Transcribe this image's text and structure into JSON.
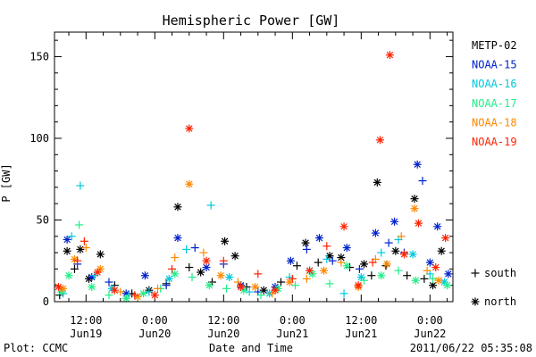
{
  "chart_data": {
    "type": "scatter",
    "title": "Hemispheric Power [GW]",
    "xlabel": "Date and Time",
    "ylabel": "P [GW]",
    "xlim_hours": [
      -17.5,
      52.0
    ],
    "ylim": [
      0,
      165
    ],
    "y_ticks": [
      0,
      50,
      100,
      150
    ],
    "x_ticks": [
      {
        "h": -12,
        "time": "12:00",
        "date": "Jun19"
      },
      {
        "h": 0,
        "time": "0:00",
        "date": "Jun20"
      },
      {
        "h": 12,
        "time": "12:00",
        "date": "Jun20"
      },
      {
        "h": 24,
        "time": "0:00",
        "date": "Jun21"
      },
      {
        "h": 36,
        "time": "12:00",
        "date": "Jun21"
      },
      {
        "h": 48,
        "time": "0:00",
        "date": "Jun22"
      }
    ],
    "marker_legend": [
      {
        "symbol": "+",
        "label": "south"
      },
      {
        "symbol": "*",
        "label": "north"
      }
    ],
    "series": [
      {
        "name": "METP-02",
        "color": "#000000",
        "points": [
          {
            "h": -16.6,
            "v": 4,
            "m": "+"
          },
          {
            "h": -15.3,
            "v": 31,
            "m": "*"
          },
          {
            "h": -14.0,
            "v": 20,
            "m": "+"
          },
          {
            "h": -13.0,
            "v": 32,
            "m": "*"
          },
          {
            "h": -11.5,
            "v": 14,
            "m": "*"
          },
          {
            "h": -9.5,
            "v": 29,
            "m": "*"
          },
          {
            "h": -7.0,
            "v": 10,
            "m": "+"
          },
          {
            "h": -4.0,
            "v": 5,
            "m": "+"
          },
          {
            "h": -1.0,
            "v": 7,
            "m": "*"
          },
          {
            "h": 2.0,
            "v": 11,
            "m": "+"
          },
          {
            "h": 4.0,
            "v": 58,
            "m": "*"
          },
          {
            "h": 6.0,
            "v": 21,
            "m": "+"
          },
          {
            "h": 8.0,
            "v": 18,
            "m": "*"
          },
          {
            "h": 10.0,
            "v": 12,
            "m": "+"
          },
          {
            "h": 12.2,
            "v": 37,
            "m": "*"
          },
          {
            "h": 14.0,
            "v": 28,
            "m": "*"
          },
          {
            "h": 16.0,
            "v": 9,
            "m": "+"
          },
          {
            "h": 19.0,
            "v": 7,
            "m": "*"
          },
          {
            "h": 22.0,
            "v": 12,
            "m": "+"
          },
          {
            "h": 24.8,
            "v": 22,
            "m": "+"
          },
          {
            "h": 26.3,
            "v": 36,
            "m": "*"
          },
          {
            "h": 28.5,
            "v": 24,
            "m": "+"
          },
          {
            "h": 30.5,
            "v": 28,
            "m": "*"
          },
          {
            "h": 32.5,
            "v": 27,
            "m": "*"
          },
          {
            "h": 34.0,
            "v": 21,
            "m": "+"
          },
          {
            "h": 36.5,
            "v": 23,
            "m": "*"
          },
          {
            "h": 37.8,
            "v": 16,
            "m": "+"
          },
          {
            "h": 38.8,
            "v": 73,
            "m": "*"
          },
          {
            "h": 40.3,
            "v": 22,
            "m": "+"
          },
          {
            "h": 42.0,
            "v": 31,
            "m": "*"
          },
          {
            "h": 44.0,
            "v": 16,
            "m": "+"
          },
          {
            "h": 45.3,
            "v": 63,
            "m": "*"
          },
          {
            "h": 47.0,
            "v": 14,
            "m": "+"
          },
          {
            "h": 48.5,
            "v": 10,
            "m": "*"
          },
          {
            "h": 50.0,
            "v": 31,
            "m": "*"
          }
        ]
      },
      {
        "name": "NOAA-15",
        "color": "#0022cc",
        "points": [
          {
            "h": -15.3,
            "v": 38,
            "m": "*"
          },
          {
            "h": -13.5,
            "v": 23,
            "m": "+"
          },
          {
            "h": -11.0,
            "v": 15,
            "m": "*"
          },
          {
            "h": -8.0,
            "v": 12,
            "m": "+"
          },
          {
            "h": -5.0,
            "v": 5,
            "m": "*"
          },
          {
            "h": -1.7,
            "v": 16,
            "m": "*"
          },
          {
            "h": 2.0,
            "v": 10,
            "m": "+"
          },
          {
            "h": 4.0,
            "v": 39,
            "m": "*"
          },
          {
            "h": 7.0,
            "v": 33,
            "m": "+"
          },
          {
            "h": 9.0,
            "v": 21,
            "m": "*"
          },
          {
            "h": 12.0,
            "v": 23,
            "m": "+"
          },
          {
            "h": 15.0,
            "v": 10,
            "m": "*"
          },
          {
            "h": 18.0,
            "v": 6,
            "m": "+"
          },
          {
            "h": 21.0,
            "v": 9,
            "m": "*"
          },
          {
            "h": 23.7,
            "v": 25,
            "m": "*"
          },
          {
            "h": 26.5,
            "v": 32,
            "m": "+"
          },
          {
            "h": 28.7,
            "v": 39,
            "m": "*"
          },
          {
            "h": 31.0,
            "v": 25,
            "m": "+"
          },
          {
            "h": 33.5,
            "v": 33,
            "m": "*"
          },
          {
            "h": 35.7,
            "v": 20,
            "m": "+"
          },
          {
            "h": 38.5,
            "v": 42,
            "m": "*"
          },
          {
            "h": 40.8,
            "v": 36,
            "m": "+"
          },
          {
            "h": 41.8,
            "v": 49,
            "m": "*"
          },
          {
            "h": 43.5,
            "v": 30,
            "m": "+"
          },
          {
            "h": 45.8,
            "v": 84,
            "m": "*"
          },
          {
            "h": 46.7,
            "v": 74,
            "m": "+"
          },
          {
            "h": 48.0,
            "v": 24,
            "m": "*"
          },
          {
            "h": 49.3,
            "v": 46,
            "m": "*"
          },
          {
            "h": 51.2,
            "v": 17,
            "m": "*"
          }
        ]
      },
      {
        "name": "NOAA-16",
        "color": "#00c8dd",
        "points": [
          {
            "h": -16.0,
            "v": 5,
            "m": "+"
          },
          {
            "h": -14.5,
            "v": 40,
            "m": "+"
          },
          {
            "h": -13.0,
            "v": 71,
            "m": "+"
          },
          {
            "h": -10.5,
            "v": 16,
            "m": "+"
          },
          {
            "h": -7.5,
            "v": 8,
            "m": "*"
          },
          {
            "h": -4.5,
            "v": 4,
            "m": "+"
          },
          {
            "h": -1.0,
            "v": 6,
            "m": "+"
          },
          {
            "h": 2.5,
            "v": 14,
            "m": "*"
          },
          {
            "h": 5.5,
            "v": 32,
            "m": "+"
          },
          {
            "h": 9.8,
            "v": 59,
            "m": "+"
          },
          {
            "h": 13.0,
            "v": 15,
            "m": "*"
          },
          {
            "h": 16.5,
            "v": 6,
            "m": "+"
          },
          {
            "h": 20.0,
            "v": 5,
            "m": "*"
          },
          {
            "h": 23.5,
            "v": 15,
            "m": "+"
          },
          {
            "h": 27.0,
            "v": 19,
            "m": "*"
          },
          {
            "h": 30.0,
            "v": 26,
            "m": "+"
          },
          {
            "h": 33.0,
            "v": 5,
            "m": "+"
          },
          {
            "h": 36.0,
            "v": 15,
            "m": "*"
          },
          {
            "h": 39.5,
            "v": 30,
            "m": "+"
          },
          {
            "h": 42.5,
            "v": 38,
            "m": "+"
          },
          {
            "h": 45.0,
            "v": 29,
            "m": "*"
          },
          {
            "h": 48.0,
            "v": 17,
            "m": "+"
          },
          {
            "h": 50.5,
            "v": 12,
            "m": "*"
          }
        ]
      },
      {
        "name": "NOAA-17",
        "color": "#22ee88",
        "points": [
          {
            "h": -16.3,
            "v": 6,
            "m": "*"
          },
          {
            "h": -15.0,
            "v": 16,
            "m": "*"
          },
          {
            "h": -13.2,
            "v": 47,
            "m": "+"
          },
          {
            "h": -11.0,
            "v": 9,
            "m": "*"
          },
          {
            "h": -8.0,
            "v": 4,
            "m": "+"
          },
          {
            "h": -5.0,
            "v": 2,
            "m": "*"
          },
          {
            "h": -2.0,
            "v": 5,
            "m": "*"
          },
          {
            "h": 1.0,
            "v": 8,
            "m": "+"
          },
          {
            "h": 3.5,
            "v": 17,
            "m": "*"
          },
          {
            "h": 6.5,
            "v": 15,
            "m": "+"
          },
          {
            "h": 9.5,
            "v": 10,
            "m": "*"
          },
          {
            "h": 12.5,
            "v": 8,
            "m": "+"
          },
          {
            "h": 15.5,
            "v": 7,
            "m": "*"
          },
          {
            "h": 18.5,
            "v": 4,
            "m": "+"
          },
          {
            "h": 21.5,
            "v": 8,
            "m": "*"
          },
          {
            "h": 24.5,
            "v": 10,
            "m": "+"
          },
          {
            "h": 27.5,
            "v": 17,
            "m": "*"
          },
          {
            "h": 30.5,
            "v": 11,
            "m": "+"
          },
          {
            "h": 33.5,
            "v": 22,
            "m": "*"
          },
          {
            "h": 36.5,
            "v": 13,
            "m": "+"
          },
          {
            "h": 39.5,
            "v": 16,
            "m": "*"
          },
          {
            "h": 42.5,
            "v": 19,
            "m": "+"
          },
          {
            "h": 45.5,
            "v": 13,
            "m": "*"
          },
          {
            "h": 48.5,
            "v": 14,
            "m": "+"
          },
          {
            "h": 51.0,
            "v": 10,
            "m": "*"
          }
        ]
      },
      {
        "name": "NOAA-18",
        "color": "#ff8800",
        "points": [
          {
            "h": -16.0,
            "v": 8,
            "m": "*"
          },
          {
            "h": -14.0,
            "v": 26,
            "m": "*"
          },
          {
            "h": -12.0,
            "v": 33,
            "m": "+"
          },
          {
            "h": -9.5,
            "v": 20,
            "m": "*"
          },
          {
            "h": -6.0,
            "v": 6,
            "m": "+"
          },
          {
            "h": -3.0,
            "v": 3,
            "m": "*"
          },
          {
            "h": 0.5,
            "v": 8,
            "m": "+"
          },
          {
            "h": 3.5,
            "v": 27,
            "m": "+"
          },
          {
            "h": 6.0,
            "v": 72,
            "m": "*"
          },
          {
            "h": 8.5,
            "v": 30,
            "m": "+"
          },
          {
            "h": 11.5,
            "v": 16,
            "m": "*"
          },
          {
            "h": 14.5,
            "v": 12,
            "m": "+"
          },
          {
            "h": 17.5,
            "v": 9,
            "m": "*"
          },
          {
            "h": 20.5,
            "v": 5,
            "m": "+"
          },
          {
            "h": 23.5,
            "v": 12,
            "m": "*"
          },
          {
            "h": 26.5,
            "v": 14,
            "m": "+"
          },
          {
            "h": 29.5,
            "v": 19,
            "m": "*"
          },
          {
            "h": 32.5,
            "v": 24,
            "m": "+"
          },
          {
            "h": 35.5,
            "v": 9,
            "m": "*"
          },
          {
            "h": 38.5,
            "v": 26,
            "m": "+"
          },
          {
            "h": 40.5,
            "v": 23,
            "m": "*"
          },
          {
            "h": 43.0,
            "v": 40,
            "m": "+"
          },
          {
            "h": 45.3,
            "v": 57,
            "m": "*"
          },
          {
            "h": 47.5,
            "v": 19,
            "m": "+"
          },
          {
            "h": 49.5,
            "v": 13,
            "m": "*"
          }
        ]
      },
      {
        "name": "NOAA-19",
        "color": "#ff2200",
        "points": [
          {
            "h": -16.8,
            "v": 9,
            "m": "*"
          },
          {
            "h": -13.5,
            "v": 25,
            "m": "+"
          },
          {
            "h": -12.3,
            "v": 37,
            "m": "+"
          },
          {
            "h": -10.0,
            "v": 18,
            "m": "*"
          },
          {
            "h": -7.0,
            "v": 7,
            "m": "*"
          },
          {
            "h": -3.5,
            "v": 4,
            "m": "+"
          },
          {
            "h": 0.0,
            "v": 4,
            "m": "*"
          },
          {
            "h": 3.0,
            "v": 20,
            "m": "+"
          },
          {
            "h": 6.0,
            "v": 106,
            "m": "*"
          },
          {
            "h": 9.0,
            "v": 25,
            "m": "*"
          },
          {
            "h": 12.0,
            "v": 25,
            "m": "+"
          },
          {
            "h": 15.0,
            "v": 9,
            "m": "*"
          },
          {
            "h": 18.0,
            "v": 17,
            "m": "+"
          },
          {
            "h": 21.0,
            "v": 7,
            "m": "*"
          },
          {
            "h": 24.0,
            "v": 14,
            "m": "+"
          },
          {
            "h": 27.0,
            "v": 19,
            "m": "*"
          },
          {
            "h": 30.0,
            "v": 34,
            "m": "+"
          },
          {
            "h": 33.0,
            "v": 46,
            "m": "*"
          },
          {
            "h": 35.5,
            "v": 10,
            "m": "*"
          },
          {
            "h": 38.0,
            "v": 24,
            "m": "+"
          },
          {
            "h": 39.3,
            "v": 99,
            "m": "*"
          },
          {
            "h": 41.0,
            "v": 151,
            "m": "*"
          },
          {
            "h": 43.5,
            "v": 29,
            "m": "*"
          },
          {
            "h": 46.0,
            "v": 48,
            "m": "*"
          },
          {
            "h": 49.0,
            "v": 21,
            "m": "*"
          },
          {
            "h": 50.7,
            "v": 39,
            "m": "*"
          }
        ]
      }
    ]
  },
  "footer": {
    "left": "Plot: CCMC",
    "center": "Date and Time",
    "right": "2011/06/22 05:35:08"
  }
}
